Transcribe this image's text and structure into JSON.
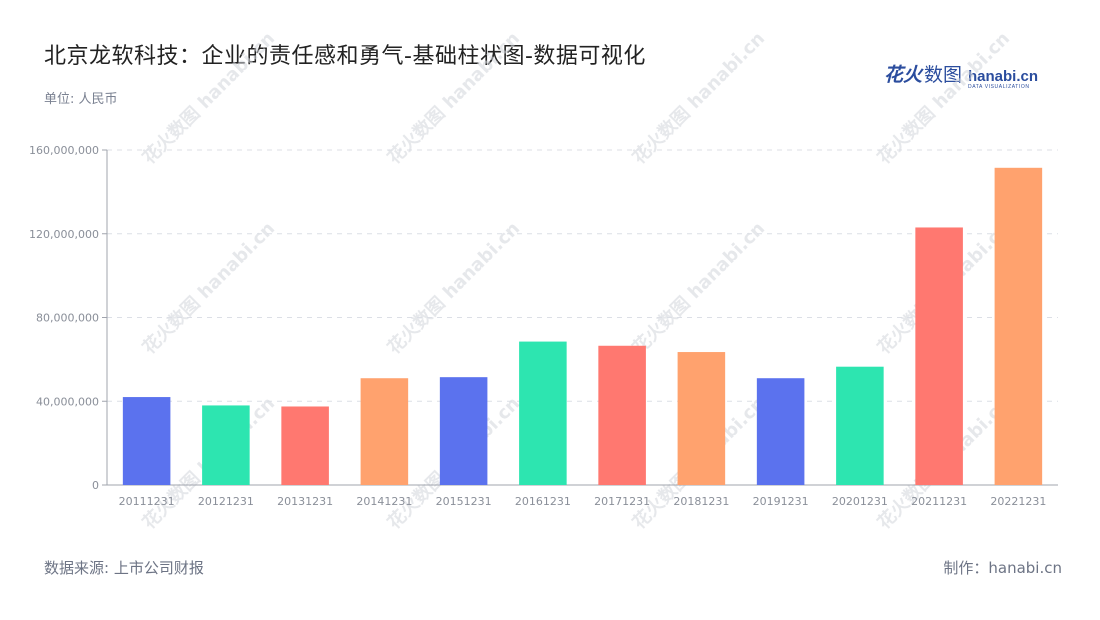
{
  "title": "北京龙软科技：企业的责任感和勇气-基础柱状图-数据可视化",
  "unit_label": "单位: 人民币",
  "logo": {
    "cn": "花火",
    "cn2": "数图",
    "en": "hanabi.cn",
    "en_sub": "DATA VISUALIZATION"
  },
  "watermark_text": "花火数图 hanabi.cn",
  "footer": {
    "source": "数据来源: 上市公司财报",
    "maker": "制作：hanabi.cn"
  },
  "chart_data": {
    "type": "bar",
    "categories": [
      "20111231",
      "20121231",
      "20131231",
      "20141231",
      "20151231",
      "20161231",
      "20171231",
      "20181231",
      "20191231",
      "20201231",
      "20211231",
      "20221231"
    ],
    "values": [
      42000000,
      38000000,
      37500000,
      51000000,
      51500000,
      68500000,
      66500000,
      63500000,
      51000000,
      56500000,
      123000000,
      151500000
    ],
    "colors": [
      "#5b72ee",
      "#2de5b0",
      "#ff7870",
      "#ffa26e",
      "#5b72ee",
      "#2de5b0",
      "#ff7870",
      "#ffa26e",
      "#5b72ee",
      "#2de5b0",
      "#ff7870",
      "#ffa26e"
    ],
    "y_ticks": [
      "0",
      "40,000,000",
      "80,000,000",
      "120,000,000",
      "160,000,000"
    ],
    "ylim": [
      0,
      160000000
    ],
    "grid": true,
    "xlabel": "",
    "ylabel": ""
  }
}
